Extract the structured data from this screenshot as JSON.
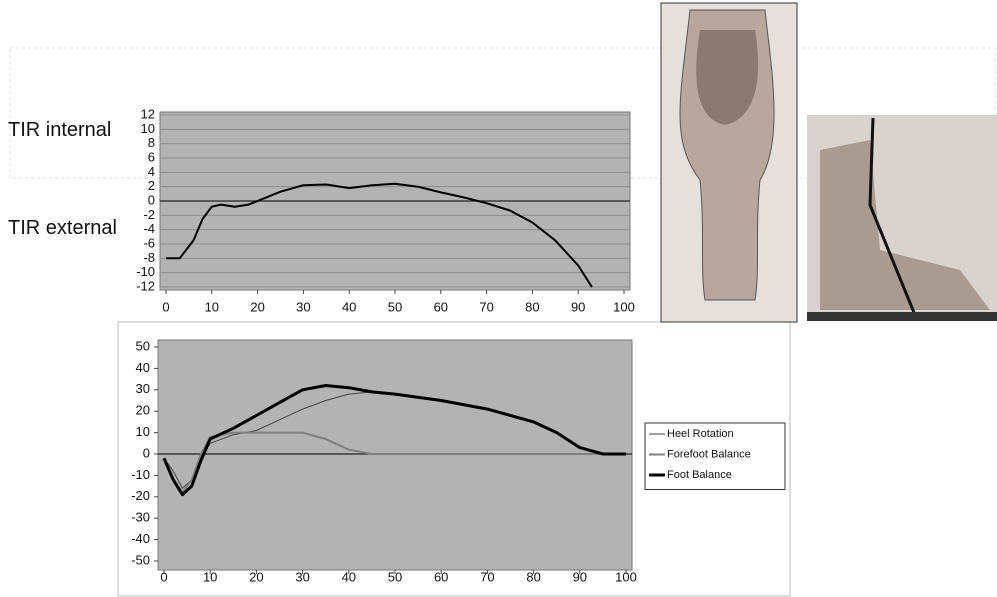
{
  "chart_data": [
    {
      "type": "line",
      "annotations": [
        "TIR internal",
        "TIR external"
      ],
      "x": [
        0,
        3,
        6,
        8,
        10,
        12,
        15,
        18,
        20,
        25,
        30,
        35,
        40,
        45,
        50,
        55,
        60,
        65,
        70,
        75,
        80,
        85,
        90,
        93
      ],
      "series": [
        {
          "color": "#000000",
          "width": 2,
          "values": [
            -8,
            -8,
            -5.5,
            -2.5,
            -0.8,
            -0.5,
            -0.8,
            -0.5,
            0,
            1.3,
            2.2,
            2.3,
            1.8,
            2.2,
            2.4,
            2,
            1.2,
            0.5,
            -0.3,
            -1.3,
            -3,
            -5.5,
            -9,
            -12
          ]
        }
      ],
      "xlim": [
        0,
        100
      ],
      "xticks": [
        0,
        10,
        20,
        30,
        40,
        50,
        60,
        70,
        80,
        90,
        100
      ],
      "ylim": [
        -12,
        12
      ],
      "yticks": [
        -12,
        -10,
        -8,
        -6,
        -4,
        -2,
        0,
        2,
        4,
        6,
        8,
        10,
        12
      ],
      "grid": true,
      "background": "#b3b3b3"
    },
    {
      "type": "line",
      "x": [
        0,
        2,
        4,
        6,
        8,
        10,
        15,
        20,
        25,
        30,
        35,
        40,
        45,
        50,
        60,
        70,
        80,
        85,
        90,
        95,
        100
      ],
      "series": [
        {
          "name": "Heel Rotation",
          "color": "#444444",
          "width": 1,
          "values": [
            -2,
            -8,
            -16,
            -12,
            -2,
            5,
            9,
            11,
            16,
            21,
            25,
            28,
            29,
            28,
            25,
            21,
            15,
            10,
            3,
            0,
            0
          ]
        },
        {
          "name": "Forefoot Balance",
          "color": "#808080",
          "width": 2,
          "values": [
            -2,
            -12,
            -18,
            -12,
            0,
            8,
            10,
            10,
            10,
            10,
            7,
            2,
            0,
            0,
            0,
            0,
            0,
            0,
            0,
            0,
            0
          ]
        },
        {
          "name": "Foot Balance",
          "color": "#000000",
          "width": 3,
          "values": [
            -2,
            -12,
            -19,
            -15,
            -3,
            7,
            12,
            18,
            24,
            30,
            32,
            31,
            29,
            28,
            25,
            21,
            15,
            10,
            3,
            0,
            0
          ]
        }
      ],
      "xlim": [
        0,
        100
      ],
      "xticks": [
        0,
        10,
        20,
        30,
        40,
        50,
        60,
        70,
        80,
        90,
        100
      ],
      "ylim": [
        -50,
        50
      ],
      "yticks": [
        -50,
        -40,
        -30,
        -20,
        -10,
        0,
        10,
        20,
        30,
        40,
        50
      ],
      "grid": false,
      "legend": "right",
      "background": "#b3b3b3"
    }
  ]
}
